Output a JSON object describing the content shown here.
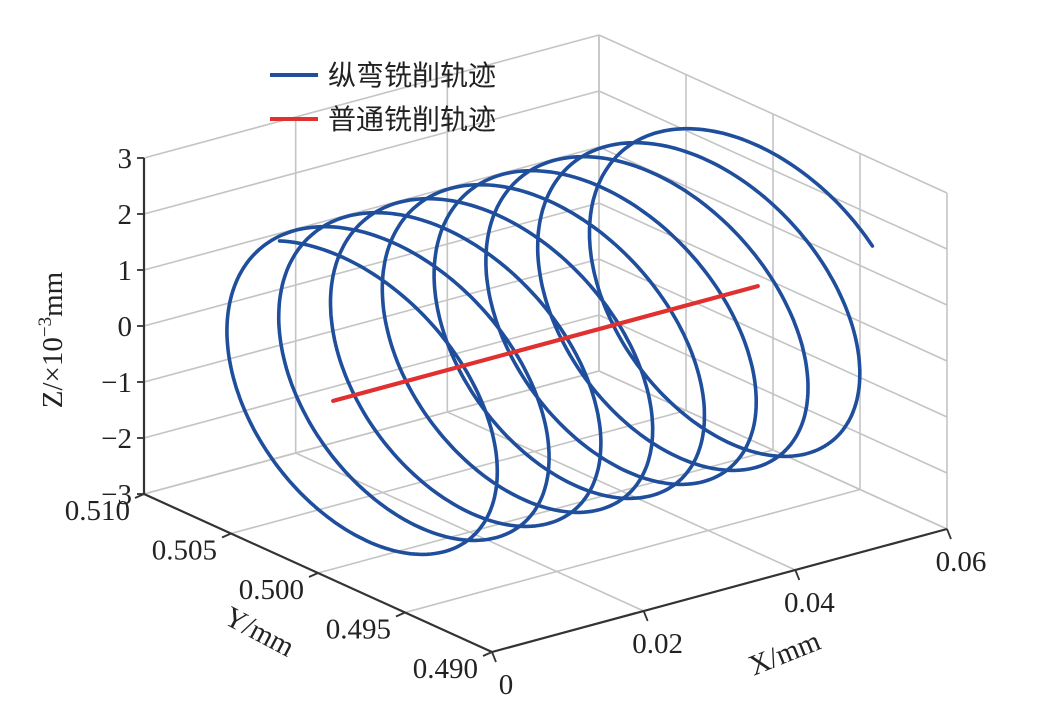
{
  "chart_data": {
    "type": "line",
    "title": "",
    "xlabel": "X/mm",
    "ylabel": "Y/mm",
    "zlabel_main": "Z/×10",
    "zlabel_exp": "−3",
    "zlabel_unit": "mm",
    "xlim": [
      0,
      0.06
    ],
    "ylim": [
      0.49,
      0.51
    ],
    "zlim": [
      -3,
      3
    ],
    "x_ticks": [
      "0",
      "0.02",
      "0.04",
      "0.06"
    ],
    "y_ticks": [
      "0.510",
      "0.505",
      "0.500",
      "0.495",
      "0.490"
    ],
    "z_ticks": [
      "3",
      "2",
      "1",
      "0",
      "−1",
      "−2",
      "−3"
    ],
    "grid": true,
    "legend_position": "top-left",
    "series": [
      {
        "name": "纵弯铣削轨迹",
        "color": "#1f4e9c",
        "kind": "helix",
        "x_start": 0.002,
        "x_end": 0.058,
        "y_center": 0.5,
        "radius_y": 0.0085,
        "radius_z": 2.6,
        "turns": 8.2
      },
      {
        "name": "普通铣削轨迹",
        "color": "#e03030",
        "kind": "straight",
        "x": [
          0.002,
          0.058
        ],
        "y": [
          0.5,
          0.5
        ],
        "z": [
          0,
          0
        ]
      }
    ]
  }
}
